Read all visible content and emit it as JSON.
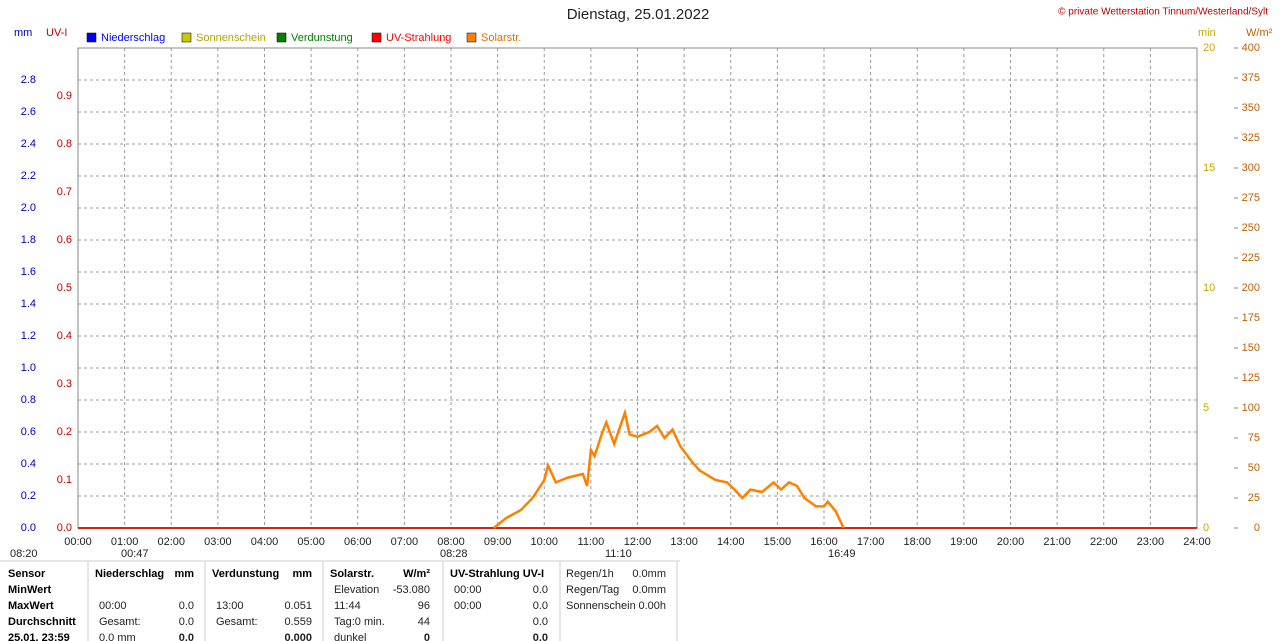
{
  "chart_data": {
    "type": "line",
    "title": "Dienstag, 25.01.2022",
    "copyright": "© private Wetterstation Tinnum/Westerland/Sylt",
    "axis_labels": {
      "y": "mm",
      "y2": "UV-I",
      "y3": "min",
      "y4": "W/m²"
    },
    "xlim": [
      0,
      24
    ],
    "xticks": [
      {
        "value": 0,
        "label": "00:00"
      },
      {
        "value": 1,
        "label": "01:00"
      },
      {
        "value": 2,
        "label": "02:00"
      },
      {
        "value": 3,
        "label": "03:00"
      },
      {
        "value": 4,
        "label": "04:00"
      },
      {
        "value": 5,
        "label": "05:00"
      },
      {
        "value": 6,
        "label": "06:00"
      },
      {
        "value": 7,
        "label": "07:00"
      },
      {
        "value": 8,
        "label": "08:00"
      },
      {
        "value": 9,
        "label": "09:00"
      },
      {
        "value": 10,
        "label": "10:00"
      },
      {
        "value": 11,
        "label": "11:00"
      },
      {
        "value": 12,
        "label": "12:00"
      },
      {
        "value": 13,
        "label": "13:00"
      },
      {
        "value": 14,
        "label": "14:00"
      },
      {
        "value": 15,
        "label": "15:00"
      },
      {
        "value": 16,
        "label": "16:00"
      },
      {
        "value": 17,
        "label": "17:00"
      },
      {
        "value": 18,
        "label": "18:00"
      },
      {
        "value": 19,
        "label": "19:00"
      },
      {
        "value": 20,
        "label": "20:00"
      },
      {
        "value": 21,
        "label": "21:00"
      },
      {
        "value": 22,
        "label": "22:00"
      },
      {
        "value": 23,
        "label": "23:00"
      },
      {
        "value": 24,
        "label": "24:00"
      }
    ],
    "ylim": [
      0,
      3
    ],
    "yticks": [
      {
        "value": 0,
        "label": "0.0"
      },
      0.2,
      0.4,
      0.6,
      0.8,
      {
        "value": 1,
        "label": "1.0"
      },
      1.2,
      1.4,
      1.6,
      1.8,
      {
        "value": 2,
        "label": "2.0"
      },
      2.2,
      2.4,
      2.6,
      2.8
    ],
    "y2lim": [
      0,
      1
    ],
    "y2ticks": [
      {
        "value": 0,
        "label": "0.0"
      },
      0.1,
      0.2,
      0.3,
      0.4,
      0.5,
      0.6,
      0.7,
      0.8,
      0.9
    ],
    "y3lim": [
      0,
      20
    ],
    "y3ticks": [
      0,
      5,
      10,
      15,
      20
    ],
    "y4lim": [
      0,
      400
    ],
    "y4ticks": [
      0,
      25,
      50,
      75,
      100,
      125,
      150,
      175,
      200,
      225,
      250,
      275,
      300,
      325,
      350,
      375,
      400
    ],
    "grid": true,
    "series": [
      {
        "name": "Niederschlag",
        "color": "#0000ff",
        "axis": "y",
        "x": [
          0,
          24
        ],
        "values": [
          0,
          0
        ]
      },
      {
        "name": "Sonnenschein",
        "color": "#c8c800",
        "axis": "y3",
        "x": [
          0,
          24
        ],
        "values": [
          0,
          0
        ]
      },
      {
        "name": "Verdunstung",
        "color": "#008000",
        "axis": "y",
        "x": [
          0,
          24
        ],
        "values": [
          0,
          0
        ]
      },
      {
        "name": "UV-Strahlung",
        "color": "#ff0000",
        "axis": "y2",
        "x": [
          0,
          24
        ],
        "values": [
          0,
          0
        ]
      },
      {
        "name": "Solarstr.",
        "color": "#ff8000",
        "axis": "y4",
        "x": [
          8.92,
          9.17,
          9.5,
          9.75,
          10,
          10.08,
          10.25,
          10.5,
          10.83,
          10.92,
          11,
          11.08,
          11.25,
          11.33,
          11.5,
          11.73,
          11.83,
          12,
          12.25,
          12.42,
          12.58,
          12.75,
          12.92,
          13.17,
          13.33,
          13.67,
          13.92,
          14.08,
          14.25,
          14.42,
          14.67,
          14.92,
          15.08,
          15.25,
          15.42,
          15.58,
          15.83,
          16,
          16.08,
          16.25,
          16.42
        ],
        "values": [
          0,
          8,
          15,
          25,
          40,
          52,
          38,
          42,
          45,
          35,
          65,
          60,
          80,
          88,
          70,
          96,
          78,
          76,
          80,
          85,
          75,
          82,
          68,
          55,
          48,
          40,
          38,
          32,
          25,
          32,
          30,
          38,
          32,
          38,
          35,
          25,
          18,
          18,
          22,
          14,
          0
        ]
      }
    ],
    "annotations": [
      "08:20",
      "00:47",
      "08:28",
      "11:10",
      "16:49"
    ],
    "stats": {
      "row_labels": [
        "Sensor",
        "MinWert",
        "MaxWert",
        "Durchschnitt",
        "25.01. 23:59"
      ],
      "blocks": [
        {
          "header": [
            "Niederschlag",
            "mm"
          ],
          "rows": [
            [
              null,
              null
            ],
            [
              "00:00",
              "0.0"
            ],
            [
              "Gesamt:",
              "0.0"
            ],
            [
              "0.0 mm",
              "0.0"
            ]
          ]
        },
        {
          "header": [
            "Verdunstung",
            "mm"
          ],
          "rows": [
            [
              null,
              null
            ],
            [
              "13:00",
              "0.051"
            ],
            [
              "Gesamt:",
              "0.559"
            ],
            [
              null,
              "0.000"
            ]
          ]
        },
        {
          "header": [
            "Solarstr.",
            "W/m²"
          ],
          "rows": [
            [
              "Elevation",
              "-53.080"
            ],
            [
              "11:44",
              "96"
            ],
            [
              "Tag:0 min.",
              "44"
            ],
            [
              "dunkel",
              "0"
            ]
          ]
        },
        {
          "header": [
            "UV-Strahlung UV-I",
            null
          ],
          "rows": [
            [
              "00:00",
              "0.0"
            ],
            [
              "00:00",
              "0.0"
            ],
            [
              null,
              "0.0"
            ],
            [
              null,
              "0.0"
            ]
          ]
        },
        {
          "header": null,
          "rows": [
            [
              "Regen/1h",
              "0.0mm"
            ],
            [
              "Regen/Tag",
              "0.0mm"
            ],
            [
              "Sonnenschein",
              "0.00h"
            ]
          ]
        }
      ]
    }
  }
}
